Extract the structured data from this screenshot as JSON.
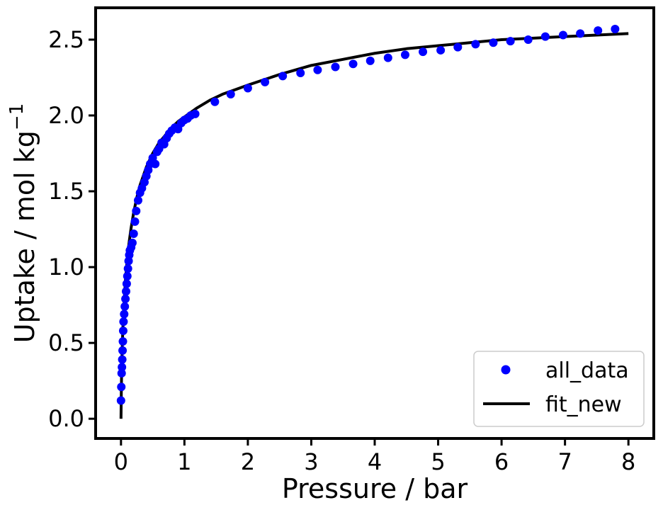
{
  "chart_data": {
    "type": "scatter",
    "xlabel": "Pressure / bar",
    "ylabel": "Uptake / mol kg",
    "ylabel_exponent": "−1",
    "xlim": [
      -0.4,
      8.4
    ],
    "ylim": [
      -0.13,
      2.71
    ],
    "xticks": [
      0,
      1,
      2,
      3,
      4,
      5,
      6,
      7,
      8
    ],
    "xtick_labels": [
      "0",
      "1",
      "2",
      "3",
      "4",
      "5",
      "6",
      "7",
      "8"
    ],
    "yticks": [
      0.0,
      0.5,
      1.0,
      1.5,
      2.0,
      2.5
    ],
    "ytick_labels": [
      "0.0",
      "0.5",
      "1.0",
      "1.5",
      "2.0",
      "2.5"
    ],
    "grid": false,
    "legend_position": "bottom-right",
    "series": [
      {
        "name": "all_data",
        "kind": "scatter",
        "color": "#0000ff",
        "x": [
          0.0,
          0.005,
          0.01,
          0.015,
          0.02,
          0.025,
          0.03,
          0.035,
          0.04,
          0.05,
          0.06,
          0.07,
          0.08,
          0.09,
          0.1,
          0.11,
          0.12,
          0.13,
          0.14,
          0.16,
          0.18,
          0.2,
          0.22,
          0.24,
          0.27,
          0.3,
          0.33,
          0.37,
          0.4,
          0.43,
          0.46,
          0.5,
          0.54,
          0.57,
          0.6,
          0.64,
          0.68,
          0.72,
          0.76,
          0.8,
          0.85,
          0.9,
          0.95,
          1.0,
          1.05,
          1.1,
          1.17,
          1.48,
          1.73,
          2.0,
          2.27,
          2.55,
          2.83,
          3.1,
          3.38,
          3.66,
          3.93,
          4.21,
          4.48,
          4.76,
          5.04,
          5.31,
          5.59,
          5.87,
          6.14,
          6.42,
          6.69,
          6.97,
          7.24,
          7.52,
          7.79
        ],
        "y": [
          0.12,
          0.21,
          0.3,
          0.34,
          0.39,
          0.45,
          0.51,
          0.58,
          0.64,
          0.69,
          0.74,
          0.79,
          0.84,
          0.89,
          0.94,
          0.99,
          1.04,
          1.08,
          1.11,
          1.13,
          1.16,
          1.22,
          1.3,
          1.37,
          1.44,
          1.49,
          1.52,
          1.56,
          1.6,
          1.64,
          1.68,
          1.72,
          1.68,
          1.76,
          1.78,
          1.82,
          1.81,
          1.85,
          1.88,
          1.9,
          1.92,
          1.91,
          1.95,
          1.97,
          1.98,
          2.0,
          2.01,
          2.09,
          2.14,
          2.18,
          2.22,
          2.26,
          2.28,
          2.3,
          2.32,
          2.34,
          2.36,
          2.38,
          2.4,
          2.42,
          2.43,
          2.45,
          2.47,
          2.48,
          2.49,
          2.5,
          2.52,
          2.53,
          2.54,
          2.56,
          2.57
        ]
      },
      {
        "name": "fit_new",
        "kind": "line",
        "color": "#000000",
        "x": [
          0.0,
          0.005,
          0.01,
          0.02,
          0.03,
          0.05,
          0.07,
          0.1,
          0.13,
          0.16,
          0.2,
          0.25,
          0.3,
          0.4,
          0.5,
          0.6,
          0.7,
          0.8,
          0.9,
          1.0,
          1.2,
          1.4,
          1.6,
          1.8,
          2.0,
          2.5,
          3.0,
          3.5,
          4.0,
          4.5,
          5.0,
          5.5,
          6.0,
          6.5,
          7.0,
          7.5,
          8.0
        ],
        "y": [
          0.0,
          0.18,
          0.31,
          0.48,
          0.6,
          0.78,
          0.91,
          1.06,
          1.17,
          1.26,
          1.36,
          1.46,
          1.54,
          1.66,
          1.75,
          1.82,
          1.87,
          1.92,
          1.96,
          1.99,
          2.05,
          2.1,
          2.14,
          2.17,
          2.2,
          2.27,
          2.33,
          2.37,
          2.41,
          2.44,
          2.46,
          2.48,
          2.5,
          2.51,
          2.52,
          2.53,
          2.54
        ]
      }
    ]
  }
}
